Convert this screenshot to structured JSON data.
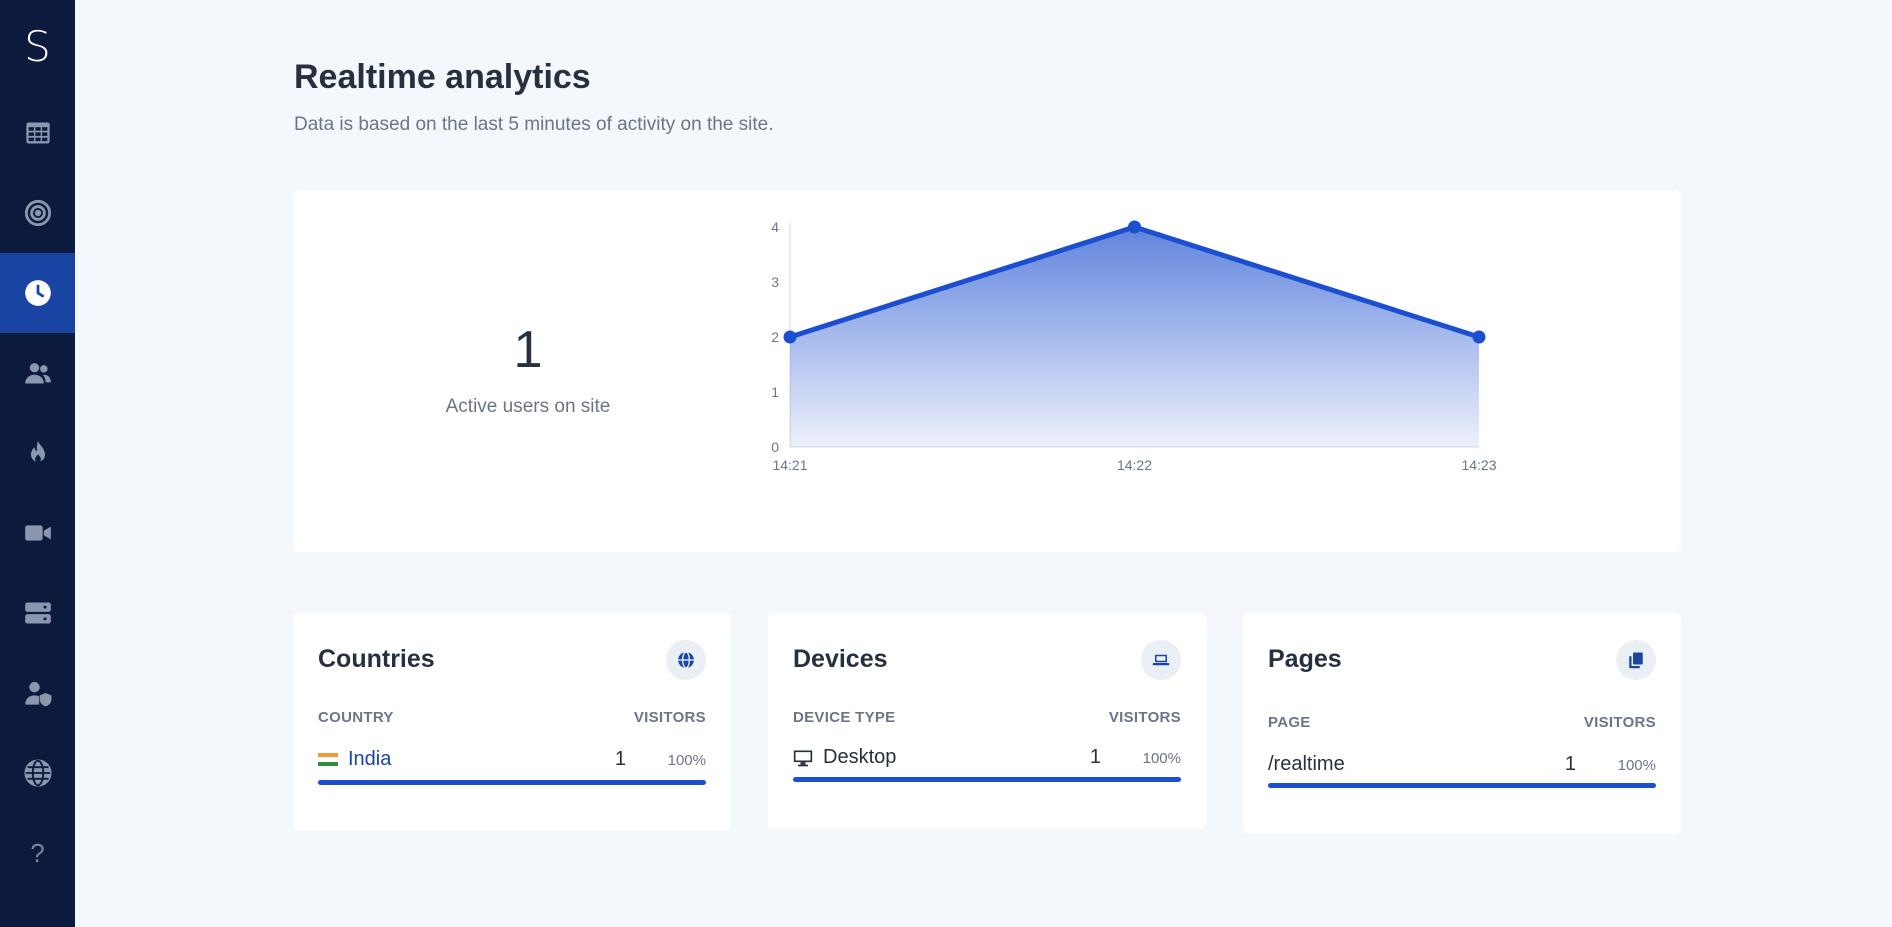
{
  "sidebar": {
    "logo": "S",
    "items": [
      {
        "icon": "grid-icon",
        "active": false
      },
      {
        "icon": "target-icon",
        "active": false
      },
      {
        "icon": "clock-icon",
        "active": true
      },
      {
        "icon": "users-icon",
        "active": false
      },
      {
        "icon": "fire-icon",
        "active": false
      },
      {
        "icon": "video-icon",
        "active": false
      },
      {
        "icon": "server-icon",
        "active": false
      },
      {
        "icon": "user-shield-icon",
        "active": false
      },
      {
        "icon": "globe-icon",
        "active": false
      }
    ],
    "help_label": "?"
  },
  "header": {
    "title": "Realtime analytics",
    "subtitle": "Data is based on the last 5 minutes of activity on the site."
  },
  "active_users": {
    "count": "1",
    "label": "Active users on site"
  },
  "chart_data": {
    "type": "area",
    "x": [
      "14:21",
      "14:22",
      "14:23"
    ],
    "series": [
      {
        "values": [
          2,
          4,
          2
        ]
      }
    ],
    "yticks": [
      "0",
      "1",
      "2",
      "3",
      "4"
    ],
    "ylim": [
      0,
      4
    ],
    "title": "",
    "xlabel": "",
    "ylabel": "",
    "color": "#1c4fcf"
  },
  "panels": {
    "countries": {
      "title": "Countries",
      "icon": "globe-icon",
      "col_left": "COUNTRY",
      "col_right": "VISITORS",
      "row": {
        "label": "India",
        "count": "1",
        "pct": "100%",
        "fraction": 1.0
      }
    },
    "devices": {
      "title": "Devices",
      "icon": "laptop-icon",
      "col_left": "DEVICE TYPE",
      "col_right": "VISITORS",
      "row": {
        "label": "Desktop",
        "count": "1",
        "pct": "100%",
        "fraction": 1.0
      }
    },
    "pages": {
      "title": "Pages",
      "icon": "copy-icon",
      "col_left": "PAGE",
      "col_right": "VISITORS",
      "row": {
        "label": "/realtime",
        "count": "1",
        "pct": "100%",
        "fraction": 1.0
      }
    }
  },
  "colors": {
    "sidebar_bg": "#0c1a3d",
    "sidebar_active": "#1944a3",
    "accent": "#1c4fcf",
    "page_bg": "#f4f7fc"
  }
}
